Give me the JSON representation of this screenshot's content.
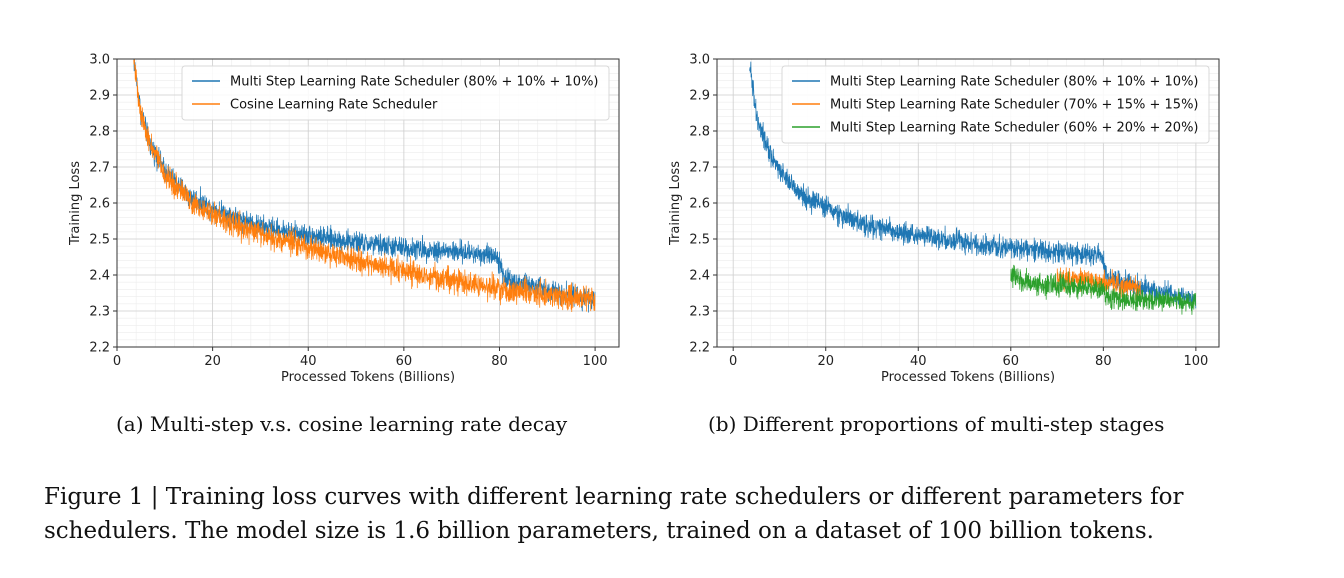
{
  "chart_data": [
    {
      "type": "line",
      "title": "",
      "xlabel": "Processed Tokens (Billions)",
      "ylabel": "Training Loss",
      "xlim": [
        0,
        105
      ],
      "ylim": [
        2.2,
        3.0
      ],
      "xticks": [
        0,
        20,
        40,
        60,
        80,
        100
      ],
      "yticks": [
        2.2,
        2.3,
        2.4,
        2.5,
        2.6,
        2.7,
        2.8,
        2.9,
        3.0
      ],
      "legend_position": "top-right",
      "series": [
        {
          "name": "Multi Step Learning Rate Scheduler (80% + 10% + 10%)",
          "color": "#1f77b4",
          "x": [
            3.5,
            5,
            7,
            10,
            15,
            20,
            25,
            30,
            40,
            50,
            60,
            70,
            79.5,
            81,
            85,
            90,
            95,
            100
          ],
          "y": [
            3.0,
            2.85,
            2.76,
            2.69,
            2.62,
            2.585,
            2.56,
            2.535,
            2.51,
            2.49,
            2.475,
            2.465,
            2.455,
            2.39,
            2.375,
            2.36,
            2.345,
            2.33
          ],
          "noise": 0.015
        },
        {
          "name": "Cosine Learning Rate Scheduler",
          "color": "#ff7f0e",
          "x": [
            3.5,
            5,
            7,
            10,
            15,
            20,
            25,
            30,
            40,
            50,
            60,
            70,
            80,
            90,
            100
          ],
          "y": [
            3.0,
            2.85,
            2.76,
            2.68,
            2.61,
            2.57,
            2.54,
            2.515,
            2.475,
            2.44,
            2.41,
            2.385,
            2.36,
            2.345,
            2.33
          ],
          "noise": 0.017
        }
      ]
    },
    {
      "type": "line",
      "title": "",
      "xlabel": "Processed Tokens (Billions)",
      "ylabel": "Training Loss",
      "xlim": [
        -3.5,
        105
      ],
      "ylim": [
        2.2,
        3.0
      ],
      "xticks": [
        0,
        20,
        40,
        60,
        80,
        100
      ],
      "yticks": [
        2.2,
        2.3,
        2.4,
        2.5,
        2.6,
        2.7,
        2.8,
        2.9,
        3.0
      ],
      "legend_position": "top-right",
      "series": [
        {
          "name": "Multi Step Learning Rate Scheduler (80% + 10% + 10%)",
          "color": "#1f77b4",
          "x": [
            3.5,
            5,
            7,
            10,
            15,
            20,
            25,
            30,
            40,
            50,
            60,
            70,
            79.5,
            81,
            85,
            90,
            95,
            100
          ],
          "y": [
            3.0,
            2.85,
            2.76,
            2.69,
            2.62,
            2.585,
            2.56,
            2.535,
            2.51,
            2.49,
            2.475,
            2.465,
            2.455,
            2.39,
            2.375,
            2.36,
            2.345,
            2.33
          ],
          "noise": 0.015
        },
        {
          "name": "Multi Step Learning Rate Scheduler (70% + 15% + 15%)",
          "color": "#ff7f0e",
          "x": [
            70,
            75,
            80,
            85,
            88
          ],
          "y": [
            2.395,
            2.385,
            2.38,
            2.37,
            2.36
          ],
          "noise": 0.014
        },
        {
          "name": "Multi Step Learning Rate Scheduler (60% + 20% + 20%)",
          "color": "#2ca02c",
          "x": [
            60,
            63,
            70,
            80,
            81,
            85,
            90,
            95,
            100
          ],
          "y": [
            2.4,
            2.38,
            2.37,
            2.36,
            2.335,
            2.33,
            2.33,
            2.33,
            2.325
          ],
          "noise": 0.015
        }
      ]
    }
  ],
  "subcaptions": {
    "a": "(a)  Multi-step v.s. cosine learning rate decay",
    "b": "(b)  Different proportions of multi-step stages"
  },
  "caption": "Figure 1 | Training loss curves with different learning rate schedulers or different parameters for schedulers. The model size is 1.6 billion parameters, trained on a dataset of 100 billion tokens."
}
